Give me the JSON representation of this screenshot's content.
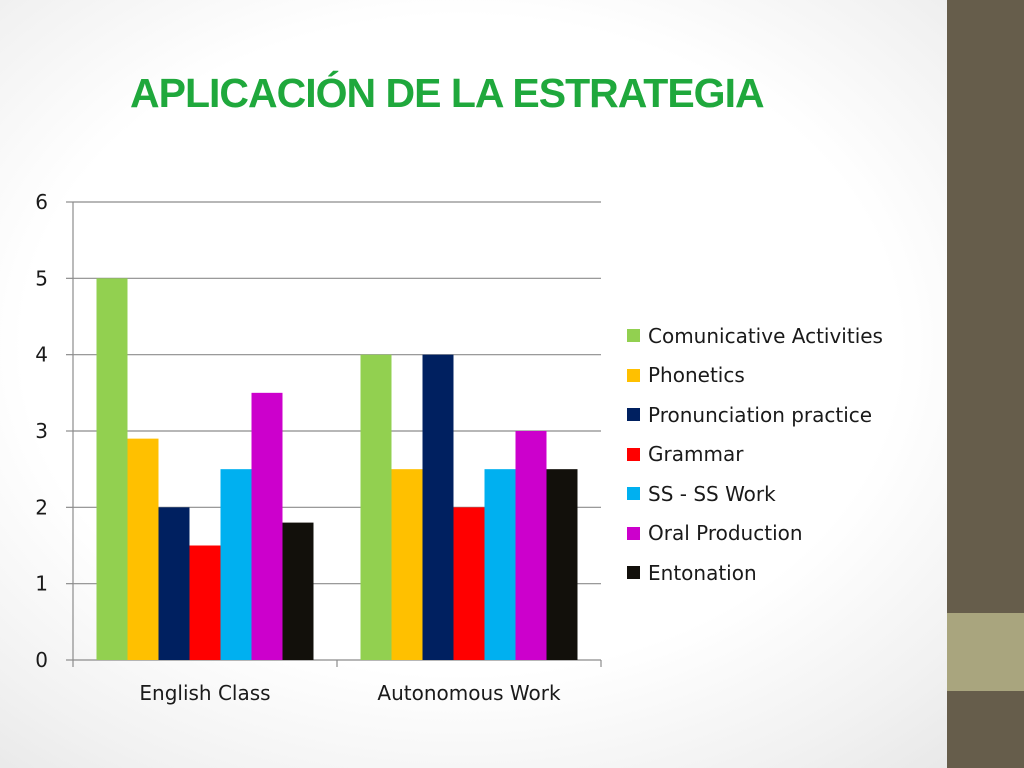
{
  "slide": {
    "title": "APLICACIÓN DE LA ESTRATEGIA",
    "colors": {
      "title": "#1fa83c",
      "sidebar": "#665d4b",
      "sidebar_accent": "#a9a57e"
    }
  },
  "chart_data": {
    "type": "bar",
    "categories": [
      "English Class",
      "Autonomous Work"
    ],
    "series": [
      {
        "name": "Comunicative Activities",
        "values": [
          5,
          4
        ],
        "color": "#92d050"
      },
      {
        "name": "Phonetics",
        "values": [
          2.9,
          2.5
        ],
        "color": "#ffc000"
      },
      {
        "name": "Pronunciation practice",
        "values": [
          2,
          4
        ],
        "color": "#002060"
      },
      {
        "name": "Grammar",
        "values": [
          1.5,
          2
        ],
        "color": "#ff0000"
      },
      {
        "name": "SS - SS Work",
        "values": [
          2.5,
          2.5
        ],
        "color": "#00b0f0"
      },
      {
        "name": "Oral Production",
        "values": [
          3.5,
          3
        ],
        "color": "#cc00cc"
      },
      {
        "name": "Entonation",
        "values": [
          1.8,
          2.5
        ],
        "color": "#12100b"
      }
    ],
    "yticks": [
      0,
      1,
      2,
      3,
      4,
      5,
      6
    ],
    "ylim": [
      0,
      6
    ],
    "title": "",
    "xlabel": "",
    "ylabel": "",
    "grid": true,
    "legend_position": "right"
  }
}
